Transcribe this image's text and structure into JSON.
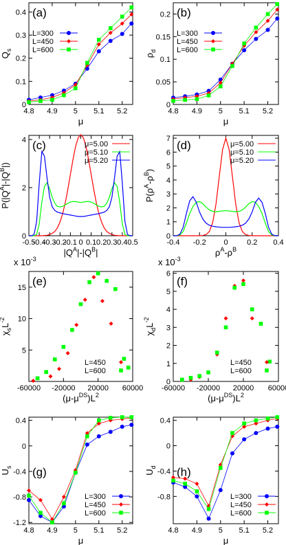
{
  "chart_data": [
    {
      "type": "line",
      "panel_label": "(a)",
      "xlabel": [
        "μ"
      ],
      "ylabel": [
        "Q",
        {
          "sub": "s"
        }
      ],
      "x": [
        4.8,
        4.85,
        4.9,
        4.95,
        5.0,
        5.05,
        5.1,
        5.15,
        5.2,
        5.24
      ],
      "xlim": [
        4.8,
        5.245
      ],
      "xticks": [
        4.8,
        4.9,
        5,
        5.1,
        5.2
      ],
      "ylim": [
        0,
        0.44
      ],
      "yticks": [
        0,
        0.1,
        0.2,
        0.3,
        0.4
      ],
      "legend": "upper left",
      "series": [
        {
          "name": "L=300",
          "color": "#0000ff",
          "marker": "circle",
          "values": [
            0.02,
            0.03,
            0.04,
            0.06,
            0.09,
            0.155,
            0.23,
            0.275,
            0.305,
            0.35
          ]
        },
        {
          "name": "L=450",
          "color": "#ff0000",
          "marker": "diamond",
          "values": [
            0.015,
            0.02,
            0.03,
            0.05,
            0.085,
            0.17,
            0.26,
            0.31,
            0.35,
            0.39
          ]
        },
        {
          "name": "L=600",
          "color": "#00ff00",
          "marker": "square",
          "values": [
            0.01,
            0.015,
            0.02,
            0.04,
            0.07,
            0.18,
            0.28,
            0.33,
            0.38,
            0.42
          ]
        }
      ]
    },
    {
      "type": "line",
      "panel_label": "(b)",
      "xlabel": [
        "μ"
      ],
      "ylabel": [
        "ρ",
        {
          "sub": "d"
        }
      ],
      "x": [
        4.8,
        4.85,
        4.9,
        4.95,
        5.0,
        5.05,
        5.1,
        5.15,
        5.2,
        5.24
      ],
      "xlim": [
        4.8,
        5.245
      ],
      "xticks": [
        4.8,
        4.9,
        5,
        5.1,
        5.2
      ],
      "ylim": [
        0,
        0.225
      ],
      "yticks": [
        0,
        0.05,
        0.1,
        0.15,
        0.2
      ],
      "legend": "upper left",
      "series": [
        {
          "name": "L=300",
          "color": "#0000ff",
          "marker": "circle",
          "values": [
            0.015,
            0.018,
            0.022,
            0.03,
            0.055,
            0.09,
            0.12,
            0.145,
            0.165,
            0.19
          ]
        },
        {
          "name": "L=450",
          "color": "#ff0000",
          "marker": "diamond",
          "values": [
            0.012,
            0.015,
            0.018,
            0.025,
            0.048,
            0.09,
            0.13,
            0.16,
            0.185,
            0.21
          ]
        },
        {
          "name": "L=600",
          "color": "#00ff00",
          "marker": "square",
          "values": [
            0.008,
            0.01,
            0.012,
            0.02,
            0.04,
            0.085,
            0.135,
            0.17,
            0.2,
            0.222
          ]
        }
      ]
    },
    {
      "type": "line",
      "panel_label": "(c)",
      "xlabel": [
        "|Q",
        {
          "sup": "A"
        },
        "|-|Q",
        {
          "sup": "B"
        },
        "|"
      ],
      "ylabel": [
        "P(|Q",
        {
          "sup": "A"
        },
        "|-|Q",
        {
          "sup": "B"
        },
        "|)"
      ],
      "x": [
        -0.5,
        -0.475,
        -0.45,
        -0.425,
        -0.4,
        -0.375,
        -0.35,
        -0.325,
        -0.3,
        -0.275,
        -0.25,
        -0.225,
        -0.2,
        -0.175,
        -0.15,
        -0.125,
        -0.1,
        -0.075,
        -0.05,
        -0.025,
        0,
        0.025,
        0.05,
        0.075,
        0.1,
        0.125,
        0.15,
        0.175,
        0.2,
        0.225,
        0.25,
        0.275,
        0.3,
        0.325,
        0.35,
        0.375,
        0.4,
        0.425,
        0.45,
        0.475,
        0.5
      ],
      "xlim": [
        -0.5,
        0.5
      ],
      "xticks": [
        -0.5,
        -0.4,
        -0.3,
        -0.2,
        -0.1,
        0,
        0.1,
        0.2,
        0.3,
        0.4,
        0.5
      ],
      "ylim": [
        0,
        4.17
      ],
      "yticks": [
        0,
        2,
        4
      ],
      "legend": "upper right",
      "series": [
        {
          "name": "μ=5.00",
          "color": "#ff0000",
          "marker": "none",
          "values": [
            0,
            0,
            0,
            0,
            0,
            0,
            0.01,
            0.02,
            0.05,
            0.1,
            0.18,
            0.33,
            0.57,
            0.91,
            1.36,
            1.92,
            2.55,
            3.17,
            3.71,
            4.07,
            4.2,
            4.07,
            3.71,
            3.17,
            2.55,
            1.92,
            1.36,
            0.91,
            0.57,
            0.33,
            0.18,
            0.1,
            0.05,
            0.02,
            0.01,
            0,
            0,
            0,
            0,
            0,
            0
          ]
        },
        {
          "name": "μ=5.10",
          "color": "#00ff00",
          "marker": "none",
          "values": [
            0,
            0,
            0,
            0.05,
            0.5,
            1.4,
            2.05,
            2.2,
            1.95,
            1.6,
            1.35,
            1.22,
            1.2,
            1.22,
            1.28,
            1.35,
            1.4,
            1.42,
            1.42,
            1.4,
            1.38,
            1.4,
            1.42,
            1.42,
            1.4,
            1.35,
            1.28,
            1.22,
            1.2,
            1.22,
            1.35,
            1.6,
            1.95,
            2.2,
            2.05,
            1.4,
            0.5,
            0.05,
            0,
            0,
            0
          ]
        },
        {
          "name": "μ=5.20",
          "color": "#0000ff",
          "marker": "none",
          "values": [
            0,
            0,
            0.05,
            0.6,
            2.2,
            3.5,
            3.3,
            2.4,
            1.6,
            1.2,
            1.05,
            0.98,
            0.95,
            0.92,
            0.9,
            0.88,
            0.86,
            0.84,
            0.82,
            0.8,
            0.8,
            0.8,
            0.82,
            0.84,
            0.86,
            0.88,
            0.9,
            0.92,
            0.95,
            0.98,
            1.05,
            1.2,
            1.6,
            2.4,
            3.3,
            3.5,
            2.2,
            0.6,
            0.05,
            0,
            0
          ]
        }
      ]
    },
    {
      "type": "line",
      "panel_label": "(d)",
      "xlabel": [
        "ρ",
        {
          "sup": "A"
        },
        "-ρ",
        {
          "sup": "B"
        }
      ],
      "ylabel": [
        "P(ρ",
        {
          "sup": "A"
        },
        "-ρ",
        {
          "sup": "B"
        },
        ")"
      ],
      "x": [
        -0.4,
        -0.375,
        -0.35,
        -0.325,
        -0.3,
        -0.275,
        -0.25,
        -0.225,
        -0.2,
        -0.175,
        -0.15,
        -0.125,
        -0.1,
        -0.075,
        -0.05,
        -0.025,
        0,
        0.025,
        0.05,
        0.075,
        0.1,
        0.125,
        0.15,
        0.175,
        0.2,
        0.225,
        0.25,
        0.275,
        0.3,
        0.325,
        0.35,
        0.375,
        0.4
      ],
      "xlim": [
        -0.4,
        0.4
      ],
      "xticks": [
        -0.4,
        -0.2,
        0,
        0.2,
        0.4
      ],
      "ylim": [
        0,
        7.2
      ],
      "yticks": [
        0,
        1,
        2,
        3,
        4,
        5,
        6,
        7
      ],
      "legend": "upper right",
      "series": [
        {
          "name": "μ=5.00",
          "color": "#ff0000",
          "marker": "none",
          "values": [
            0,
            0,
            0,
            0,
            0,
            0,
            0,
            0,
            0,
            0.02,
            0.08,
            0.31,
            0.95,
            2.27,
            4.25,
            6.18,
            7.0,
            6.18,
            4.25,
            2.27,
            0.95,
            0.31,
            0.08,
            0.02,
            0,
            0,
            0,
            0,
            0,
            0,
            0,
            0,
            0
          ]
        },
        {
          "name": "μ=5.10",
          "color": "#00ff00",
          "marker": "none",
          "values": [
            0,
            0,
            0.05,
            0.3,
            0.9,
            1.6,
            2.1,
            2.4,
            2.45,
            2.3,
            2.05,
            1.85,
            1.75,
            1.72,
            1.75,
            1.78,
            1.8,
            1.78,
            1.75,
            1.72,
            1.75,
            1.85,
            2.05,
            2.3,
            2.45,
            2.4,
            2.1,
            1.6,
            0.9,
            0.3,
            0.05,
            0,
            0
          ]
        },
        {
          "name": "μ=5.20",
          "color": "#0000ff",
          "marker": "none",
          "values": [
            0,
            0,
            0.1,
            0.6,
            1.6,
            2.5,
            2.8,
            2.4,
            1.7,
            1.2,
            0.9,
            0.75,
            0.68,
            0.64,
            0.62,
            0.6,
            0.6,
            0.6,
            0.62,
            0.64,
            0.68,
            0.75,
            0.9,
            1.2,
            1.7,
            2.4,
            2.7,
            2.4,
            1.6,
            0.6,
            0.1,
            0,
            0
          ]
        }
      ]
    },
    {
      "type": "scatter",
      "panel_label": "(e)",
      "multiplier": [
        "x 10",
        {
          "sup": "-3"
        }
      ],
      "xlabel": [
        "(μ-μ",
        {
          "sup": "DS"
        },
        ")L",
        {
          "sup": "2"
        }
      ],
      "ylabel": [
        "χ",
        {
          "sub": "s"
        },
        "L",
        {
          "sup": "-2"
        }
      ],
      "xlim": [
        -60000,
        60000
      ],
      "xticks": [
        -60000,
        -20000,
        20000,
        60000
      ],
      "ylim": [
        0,
        17.5
      ],
      "yticks": [
        5,
        10,
        15
      ],
      "legend": "lower right",
      "series": [
        {
          "name": "L=450",
          "color": "#ff0000",
          "marker": "diamond",
          "x": [
            -55000,
            -35000,
            -25000,
            -15000,
            -5000,
            5000,
            15000,
            25000,
            35000
          ],
          "values": [
            0.1,
            0.8,
            2.0,
            4.5,
            9.0,
            13.0,
            16.6,
            12.8,
            9.2
          ]
        },
        {
          "name": "L=600",
          "color": "#00ff00",
          "marker": "square",
          "x": [
            -50000,
            -40000,
            -30000,
            -20000,
            -10000,
            0,
            10000,
            20000,
            30000,
            40000,
            50000,
            55000
          ],
          "values": [
            0.5,
            1.5,
            3.5,
            5.5,
            8.2,
            12.3,
            15.8,
            17.2,
            16.0,
            14.7,
            3.6,
            2.2
          ]
        }
      ]
    },
    {
      "type": "scatter",
      "panel_label": "(f)",
      "multiplier": [
        "x 10",
        {
          "sup": "-3"
        }
      ],
      "xlabel": [
        "(μ-μ",
        {
          "sup": "DS"
        },
        ")L",
        {
          "sup": "2"
        }
      ],
      "ylabel": [
        "χ",
        {
          "sub": "d"
        },
        "L",
        {
          "sup": "-2"
        }
      ],
      "xlim": [
        -60000,
        60000
      ],
      "xticks": [
        -60000,
        -20000,
        20000,
        60000
      ],
      "ylim": [
        0,
        6.1
      ],
      "yticks": [
        0,
        1,
        2,
        3,
        4,
        5,
        6
      ],
      "legend": "lower right",
      "series": [
        {
          "name": "L=450",
          "color": "#ff0000",
          "marker": "diamond",
          "x": [
            -40000,
            -30000,
            -20000,
            -10000,
            0,
            10000,
            20000,
            30000
          ],
          "values": [
            0.1,
            0.25,
            0.5,
            1.5,
            3.5,
            5.3,
            5.6,
            3.5
          ]
        },
        {
          "name": "L=600",
          "color": "#00ff00",
          "marker": "square",
          "x": [
            -50000,
            -40000,
            -30000,
            -20000,
            -10000,
            0,
            10000,
            20000,
            30000,
            40000,
            50000
          ],
          "values": [
            0.1,
            0.2,
            0.3,
            0.5,
            1.6,
            3.0,
            5.2,
            5.4,
            4.0,
            3.2,
            1.1
          ]
        }
      ]
    },
    {
      "type": "line",
      "panel_label": "(g)",
      "xlabel": [
        "μ"
      ],
      "ylabel": [
        "U",
        {
          "sub": "s"
        }
      ],
      "x": [
        4.8,
        4.85,
        4.9,
        4.95,
        5.0,
        5.05,
        5.1,
        5.15,
        5.2,
        5.24
      ],
      "xlim": [
        4.8,
        5.245
      ],
      "xticks": [
        4.8,
        4.9,
        5,
        5.1,
        5.2
      ],
      "ylim": [
        -1.22,
        0.45
      ],
      "yticks": [
        -1.2,
        -0.8,
        -0.4,
        0,
        0.4
      ],
      "legend": "lower right",
      "series": [
        {
          "name": "L=300",
          "color": "#0000ff",
          "marker": "circle",
          "values": [
            -0.85,
            -1.1,
            -1.2,
            -0.95,
            -0.42,
            0.02,
            0.15,
            0.22,
            0.3,
            0.33
          ]
        },
        {
          "name": "L=450",
          "color": "#ff0000",
          "marker": "diamond",
          "values": [
            -0.7,
            -0.85,
            -1.15,
            -0.8,
            -0.38,
            0.2,
            0.35,
            0.4,
            0.42,
            0.44
          ]
        },
        {
          "name": "L=600",
          "color": "#00ff00",
          "marker": "square",
          "values": [
            -0.78,
            -1.05,
            -1.2,
            -0.9,
            -0.42,
            0.15,
            0.4,
            0.44,
            0.45,
            0.45
          ]
        }
      ]
    },
    {
      "type": "line",
      "panel_label": "(h)",
      "xlabel": [
        "μ"
      ],
      "ylabel": [
        "U",
        {
          "sub": "d"
        }
      ],
      "x": [
        4.8,
        4.85,
        4.9,
        4.95,
        5.0,
        5.05,
        5.1,
        5.15,
        5.2,
        5.24
      ],
      "xlim": [
        4.8,
        5.245
      ],
      "xticks": [
        4.8,
        4.9,
        5,
        5.1,
        5.2
      ],
      "ylim": [
        -1.23,
        0.45
      ],
      "yticks": [
        -0.8,
        -0.4,
        0,
        0.4
      ],
      "legend": "lower right",
      "series": [
        {
          "name": "L=300",
          "color": "#0000ff",
          "marker": "circle",
          "values": [
            -0.58,
            -0.65,
            -0.8,
            -1.15,
            -0.7,
            -0.12,
            0.1,
            0.2,
            0.27,
            0.3
          ]
        },
        {
          "name": "L=450",
          "color": "#ff0000",
          "marker": "diamond",
          "values": [
            -0.5,
            -0.52,
            -0.6,
            -0.95,
            -0.3,
            0.15,
            0.3,
            0.35,
            0.4,
            0.43
          ]
        },
        {
          "name": "L=600",
          "color": "#00ff00",
          "marker": "square",
          "values": [
            -0.55,
            -0.6,
            -0.72,
            -1.0,
            -0.35,
            0.2,
            0.35,
            0.4,
            0.43,
            0.45
          ]
        }
      ]
    }
  ]
}
